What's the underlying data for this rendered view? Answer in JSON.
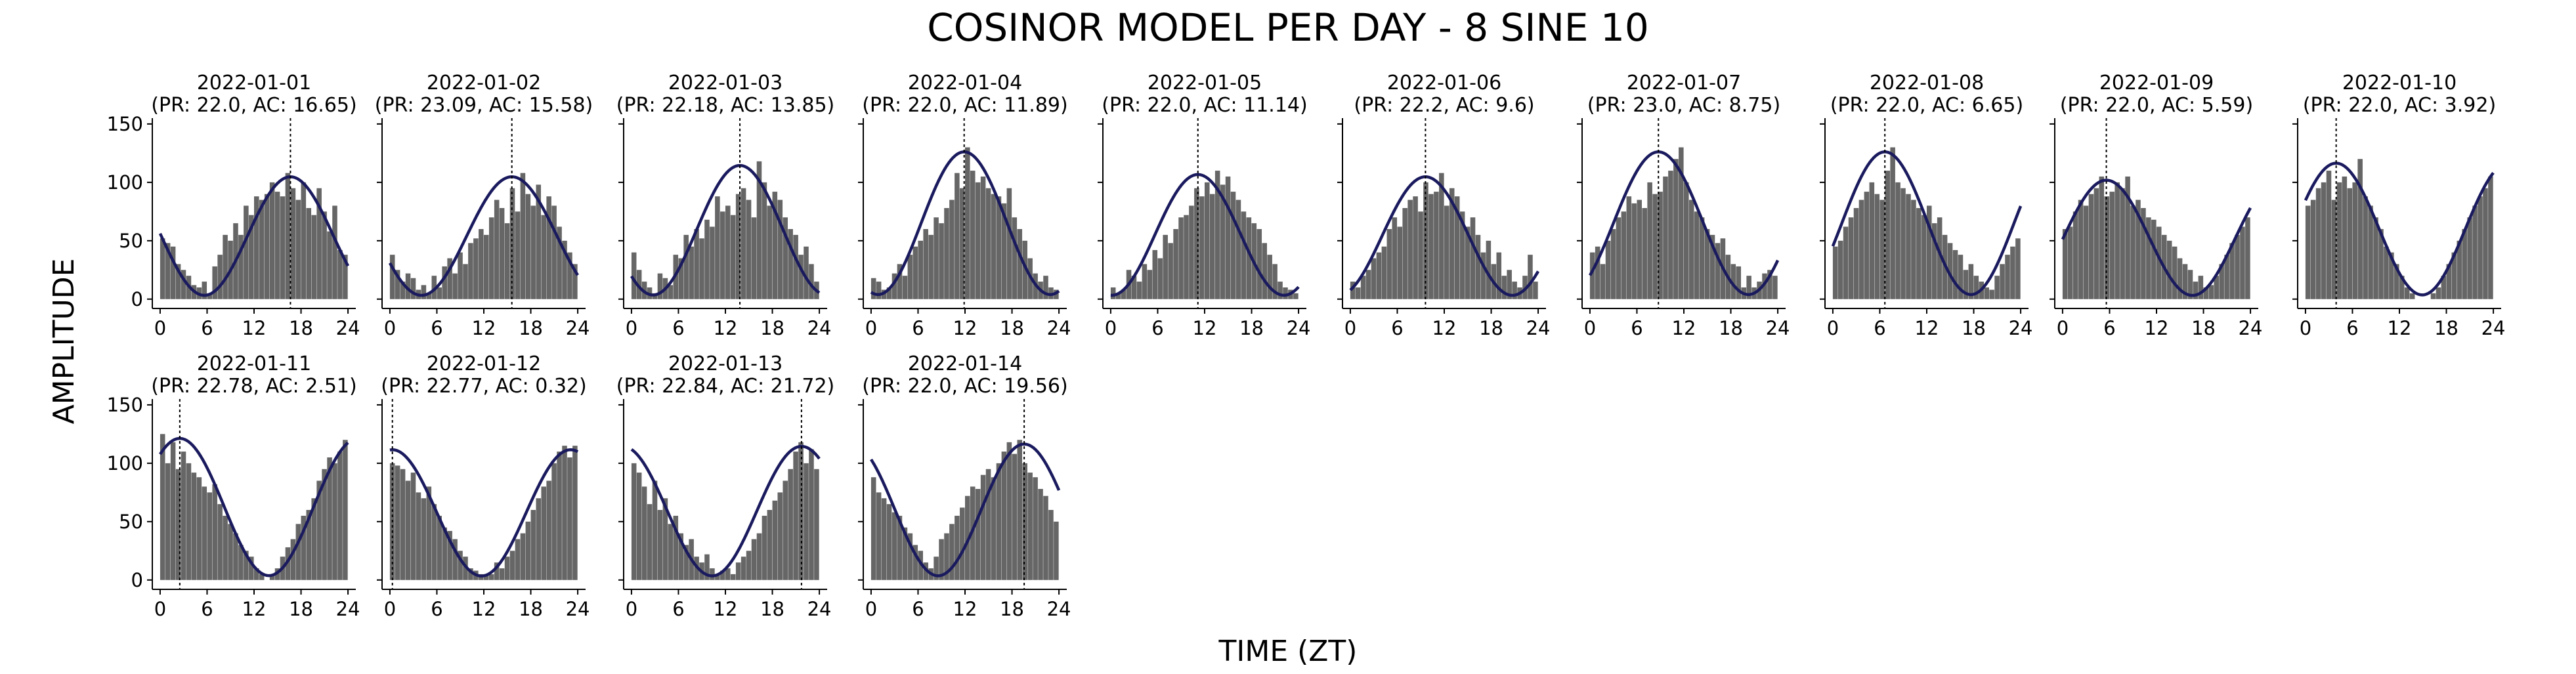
{
  "figure": {
    "title": "COSINOR MODEL PER DAY - 8 SINE 10",
    "xlabel": "TIME (ZT)",
    "ylabel": "AMPLITUDE"
  },
  "colors": {
    "bars": "#666666",
    "curve": "#1a1a5e",
    "acrophase_line": "#000000",
    "axes": "#000000"
  },
  "chart_data": {
    "type": "bar",
    "shared_axes": {
      "xlim": [
        -1,
        25
      ],
      "ylim": [
        -8,
        155
      ],
      "xticks": [
        0,
        6,
        12,
        18,
        24
      ],
      "yticks": [
        0,
        50,
        100,
        150
      ]
    },
    "panels": [
      {
        "title": "2022-01-01",
        "subtitle": "(PR: 22.0, AC: 16.65)",
        "period": 22.0,
        "acrophase": 16.65,
        "bars": [
          52,
          48,
          45,
          30,
          25,
          20,
          12,
          10,
          15,
          5,
          28,
          38,
          55,
          50,
          65,
          55,
          80,
          72,
          88,
          85,
          90,
          100,
          92,
          88,
          108,
          95,
          85,
          100,
          78,
          72,
          95,
          75,
          58,
          80,
          42,
          38
        ]
      },
      {
        "title": "2022-01-02",
        "subtitle": "(PR: 23.09, AC: 15.58)",
        "period": 23.09,
        "acrophase": 15.58,
        "bars": [
          38,
          25,
          15,
          22,
          18,
          8,
          12,
          5,
          20,
          10,
          28,
          35,
          22,
          40,
          30,
          48,
          52,
          60,
          55,
          70,
          85,
          78,
          65,
          95,
          75,
          108,
          90,
          80,
          98,
          72,
          88,
          80,
          62,
          50,
          40,
          30
        ]
      },
      {
        "title": "2022-01-03",
        "subtitle": "(PR: 22.18, AC: 13.85)",
        "period": 22.18,
        "acrophase": 13.85,
        "bars": [
          40,
          25,
          15,
          10,
          5,
          22,
          18,
          12,
          38,
          35,
          55,
          45,
          60,
          52,
          68,
          62,
          88,
          75,
          80,
          72,
          90,
          95,
          85,
          70,
          118,
          100,
          80,
          92,
          85,
          70,
          60,
          55,
          38,
          45,
          30,
          15
        ]
      },
      {
        "title": "2022-01-04",
        "subtitle": "(PR: 22.0, AC: 11.89)",
        "period": 22.0,
        "acrophase": 11.89,
        "bars": [
          18,
          15,
          8,
          10,
          22,
          30,
          20,
          38,
          45,
          50,
          60,
          55,
          70,
          65,
          78,
          85,
          108,
          95,
          130,
          110,
          100,
          105,
          95,
          90,
          88,
          82,
          95,
          70,
          60,
          50,
          35,
          22,
          15,
          20,
          10,
          8
        ]
      },
      {
        "title": "2022-01-05",
        "subtitle": "(PR: 22.0, AC: 11.14)",
        "period": 22.0,
        "acrophase": 11.14,
        "bars": [
          10,
          5,
          8,
          25,
          20,
          15,
          30,
          25,
          42,
          35,
          55,
          48,
          60,
          70,
          72,
          80,
          95,
          88,
          100,
          90,
          110,
          98,
          105,
          92,
          85,
          75,
          70,
          65,
          60,
          48,
          38,
          30,
          15,
          10,
          8,
          5
        ]
      },
      {
        "title": "2022-01-06",
        "subtitle": "(PR: 22.2, AC: 9.6)",
        "period": 22.2,
        "acrophase": 9.6,
        "bars": [
          15,
          10,
          20,
          25,
          35,
          40,
          45,
          60,
          70,
          62,
          78,
          85,
          88,
          75,
          100,
          90,
          92,
          108,
          80,
          95,
          88,
          75,
          62,
          70,
          55,
          40,
          50,
          30,
          40,
          20,
          25,
          15,
          10,
          20,
          38,
          15
        ]
      },
      {
        "title": "2022-01-07",
        "subtitle": "(PR: 23.0, AC: 8.75)",
        "period": 23.0,
        "acrophase": 8.75,
        "bars": [
          40,
          45,
          30,
          50,
          60,
          70,
          75,
          88,
          82,
          85,
          78,
          100,
          90,
          92,
          105,
          110,
          120,
          130,
          100,
          85,
          75,
          70,
          60,
          55,
          48,
          52,
          38,
          30,
          28,
          10,
          20,
          10,
          15,
          22,
          25,
          20
        ]
      },
      {
        "title": "2022-01-08",
        "subtitle": "(PR: 22.0, AC: 6.65)",
        "period": 22.0,
        "acrophase": 6.65,
        "bars": [
          45,
          50,
          62,
          70,
          78,
          85,
          92,
          100,
          90,
          85,
          110,
          130,
          100,
          95,
          90,
          85,
          78,
          72,
          80,
          65,
          70,
          55,
          48,
          42,
          38,
          25,
          30,
          20,
          15,
          10,
          8,
          20,
          30,
          38,
          45,
          52
        ]
      },
      {
        "title": "2022-01-09",
        "subtitle": "(PR: 22.0, AC: 5.59)",
        "period": 22.0,
        "acrophase": 5.59,
        "bars": [
          60,
          62,
          75,
          85,
          80,
          90,
          95,
          105,
          88,
          92,
          100,
          95,
          105,
          80,
          85,
          78,
          70,
          68,
          62,
          55,
          50,
          45,
          35,
          30,
          25,
          15,
          20,
          10,
          12,
          20,
          30,
          38,
          48,
          55,
          62,
          70
        ]
      },
      {
        "title": "2022-01-10",
        "subtitle": "(PR: 22.0, AC: 3.92)",
        "period": 22.0,
        "acrophase": 3.92,
        "bars": [
          80,
          85,
          95,
          100,
          110,
          85,
          100,
          105,
          95,
          100,
          120,
          88,
          80,
          70,
          60,
          45,
          40,
          30,
          20,
          10,
          5,
          0,
          0,
          0,
          5,
          10,
          20,
          30,
          40,
          50,
          60,
          70,
          80,
          88,
          95,
          105
        ]
      },
      {
        "title": "2022-01-11",
        "subtitle": "(PR: 22.78, AC: 2.51)",
        "period": 22.78,
        "acrophase": 2.51,
        "bars": [
          125,
          100,
          118,
          95,
          110,
          100,
          92,
          88,
          80,
          75,
          82,
          65,
          55,
          48,
          40,
          30,
          25,
          20,
          10,
          5,
          0,
          5,
          10,
          20,
          28,
          35,
          48,
          55,
          60,
          70,
          85,
          95,
          105,
          100,
          110,
          120
        ]
      },
      {
        "title": "2022-01-12",
        "subtitle": "(PR: 22.77, AC: 0.32)",
        "period": 22.77,
        "acrophase": 0.32,
        "bars": [
          100,
          98,
          95,
          85,
          92,
          75,
          70,
          80,
          65,
          55,
          45,
          42,
          35,
          25,
          20,
          10,
          8,
          5,
          5,
          5,
          15,
          10,
          20,
          25,
          35,
          40,
          50,
          60,
          70,
          80,
          85,
          100,
          110,
          115,
          105,
          115
        ]
      },
      {
        "title": "2022-01-13",
        "subtitle": "(PR: 22.84, AC: 21.72)",
        "period": 22.84,
        "acrophase": 21.72,
        "bars": [
          100,
          92,
          80,
          65,
          85,
          60,
          70,
          48,
          55,
          40,
          30,
          35,
          20,
          15,
          22,
          10,
          5,
          8,
          10,
          5,
          15,
          20,
          25,
          35,
          40,
          55,
          60,
          68,
          75,
          85,
          95,
          110,
          118,
          100,
          112,
          95
        ]
      },
      {
        "title": "2022-01-14",
        "subtitle": "(PR: 22.0, AC: 19.56)",
        "period": 22.0,
        "acrophase": 19.56,
        "bars": [
          88,
          75,
          70,
          65,
          58,
          55,
          45,
          40,
          30,
          25,
          15,
          10,
          20,
          35,
          40,
          48,
          55,
          62,
          72,
          80,
          78,
          90,
          95,
          88,
          100,
          110,
          118,
          108,
          120,
          100,
          92,
          88,
          78,
          72,
          60,
          50
        ]
      }
    ]
  }
}
